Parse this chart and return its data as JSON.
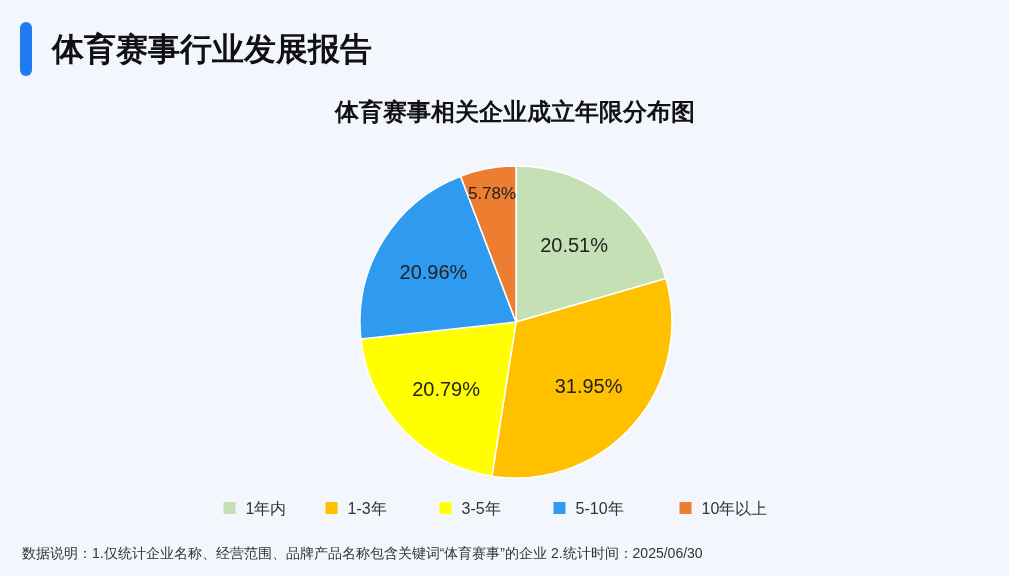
{
  "chart_data": {
    "type": "pie",
    "title": "体育赛事行业发展报告",
    "subtitle": "体育赛事相关企业成立年限分布图",
    "categories": [
      "1年内",
      "1-3年",
      "3-5年",
      "5-10年",
      "10年以上"
    ],
    "values": [
      20.51,
      31.95,
      20.79,
      20.96,
      5.78
    ],
    "colors": [
      "#c5e0b4",
      "#ffc000",
      "#ffff00",
      "#2f9bf0",
      "#ed7d31"
    ],
    "value_labels": [
      "20.51%",
      "31.95%",
      "20.79%",
      "20.96%",
      "5.78%"
    ],
    "legend": "bottom",
    "annotations": [
      "数据说明：1.仅统计企业名称、经营范围、品牌产品名称包含关键词“体育赛事”的企业  2.统计时间：2025/06/30"
    ]
  }
}
